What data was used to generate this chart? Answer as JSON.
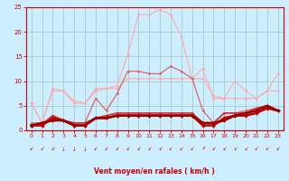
{
  "bg_color": "#cceeff",
  "grid_color": "#aacccc",
  "line_color_dark": "#cc0000",
  "xlabel": "Vent moyen/en rafales ( km/h )",
  "xlim": [
    -0.5,
    23.5
  ],
  "ylim": [
    0,
    25
  ],
  "yticks": [
    0,
    5,
    10,
    15,
    20,
    25
  ],
  "xticks": [
    0,
    1,
    2,
    3,
    4,
    5,
    6,
    7,
    8,
    9,
    10,
    11,
    12,
    13,
    14,
    15,
    16,
    17,
    18,
    19,
    20,
    21,
    22,
    23
  ],
  "series": [
    {
      "color": "#ffaaaa",
      "lw": 0.8,
      "marker": "D",
      "ms": 1.8,
      "y": [
        5.5,
        1.5,
        8.5,
        8.0,
        6.0,
        5.5,
        8.5,
        8.5,
        9.0,
        15.5,
        23.5,
        23.5,
        24.5,
        23.5,
        19.0,
        10.5,
        12.5,
        6.5,
        6.5,
        10.0,
        8.0,
        6.5,
        8.0,
        11.5
      ]
    },
    {
      "color": "#ffaaaa",
      "lw": 0.8,
      "marker": "D",
      "ms": 1.8,
      "y": [
        5.5,
        1.5,
        8.0,
        8.0,
        5.5,
        5.5,
        8.0,
        8.5,
        8.5,
        10.5,
        10.5,
        10.5,
        10.5,
        10.5,
        10.5,
        10.5,
        10.5,
        7.0,
        6.5,
        6.5,
        6.5,
        6.5,
        8.0,
        8.0
      ]
    },
    {
      "color": "#dd6666",
      "lw": 0.9,
      "marker": "D",
      "ms": 1.8,
      "y": [
        1.5,
        1.5,
        3.0,
        2.0,
        1.5,
        1.5,
        6.5,
        4.0,
        7.5,
        12.0,
        12.0,
        11.5,
        11.5,
        13.0,
        12.0,
        10.5,
        4.0,
        1.5,
        3.5,
        3.5,
        4.0,
        4.5,
        5.0,
        4.0
      ]
    },
    {
      "color": "#cc3333",
      "lw": 1.2,
      "marker": "D",
      "ms": 1.8,
      "y": [
        1.0,
        1.0,
        3.0,
        2.0,
        1.5,
        1.5,
        2.5,
        3.0,
        3.5,
        3.5,
        3.5,
        3.5,
        3.5,
        3.5,
        3.5,
        3.5,
        1.5,
        1.5,
        3.5,
        3.5,
        3.5,
        4.5,
        5.0,
        4.0
      ]
    },
    {
      "color": "#bb0000",
      "lw": 1.8,
      "marker": "D",
      "ms": 2.2,
      "y": [
        1.0,
        1.0,
        2.5,
        2.0,
        1.0,
        1.0,
        2.5,
        2.5,
        3.0,
        3.0,
        3.0,
        3.0,
        3.0,
        3.0,
        3.0,
        3.0,
        1.0,
        1.0,
        2.5,
        3.0,
        3.0,
        3.5,
        4.5,
        4.0
      ]
    },
    {
      "color": "#990000",
      "lw": 1.8,
      "marker": "D",
      "ms": 2.2,
      "y": [
        1.0,
        1.5,
        2.0,
        2.0,
        1.0,
        1.0,
        2.5,
        2.5,
        3.0,
        3.0,
        3.0,
        3.0,
        3.0,
        3.0,
        3.0,
        3.0,
        1.5,
        1.5,
        2.0,
        3.0,
        3.5,
        4.0,
        5.0,
        4.0
      ]
    }
  ],
  "wind_arrows": [
    "↙",
    "↙",
    "↙",
    "↓",
    "↓",
    "↓",
    "↙",
    "↙",
    "↙",
    "↙",
    "↙",
    "↙",
    "↙",
    "↙",
    "↙",
    "↙",
    "↗",
    "↙",
    "↙",
    "↙",
    "↙",
    "↙",
    "↙",
    "↙"
  ]
}
